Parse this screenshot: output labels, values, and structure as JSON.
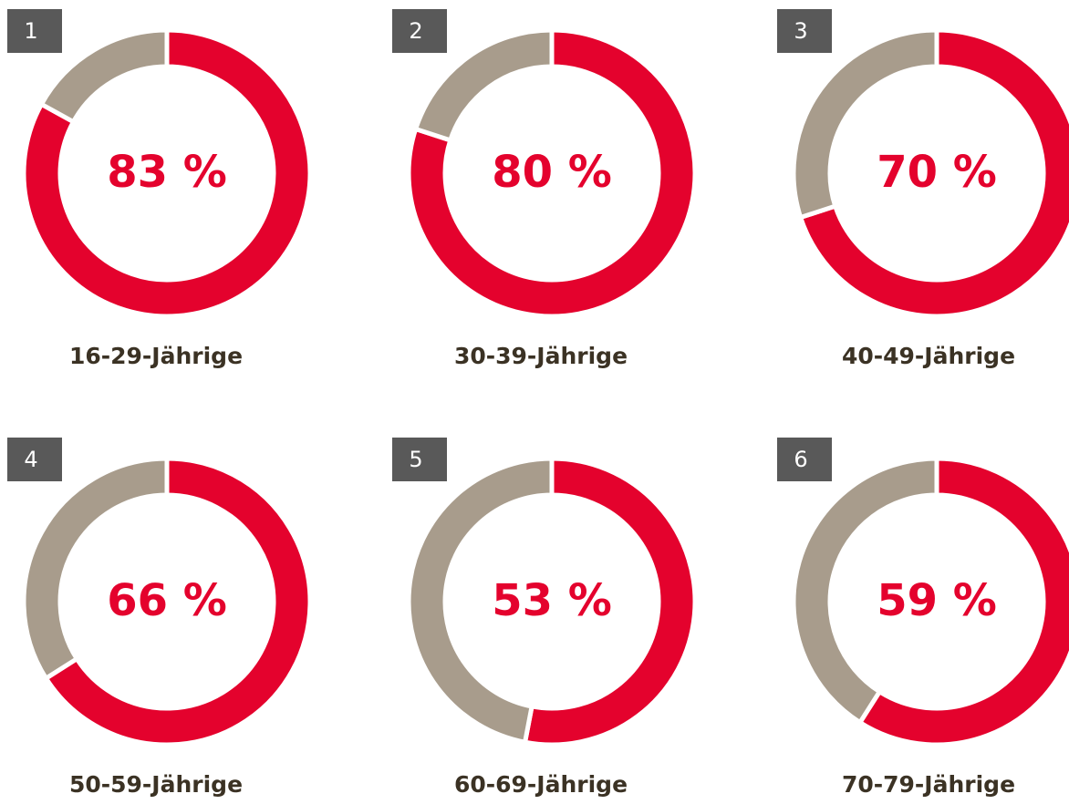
{
  "chart_data": [
    {
      "type": "donut",
      "badge": "1",
      "title": "16-29-Jährige",
      "values": [
        83,
        17
      ],
      "value_labels": [
        "83 %",
        null
      ],
      "colors": [
        "#e4022d",
        "#a89c8c"
      ]
    },
    {
      "type": "donut",
      "badge": "2",
      "title": "30-39-Jährige",
      "values": [
        80,
        20
      ],
      "value_labels": [
        "80 %",
        null
      ],
      "colors": [
        "#e4022d",
        "#a89c8c"
      ]
    },
    {
      "type": "donut",
      "badge": "3",
      "title": "40-49-Jährige",
      "values": [
        70,
        30
      ],
      "value_labels": [
        "70 %",
        null
      ],
      "colors": [
        "#e4022d",
        "#a89c8c"
      ]
    },
    {
      "type": "donut",
      "badge": "4",
      "title": "50-59-Jährige",
      "values": [
        66,
        34
      ],
      "value_labels": [
        "66 %",
        null
      ],
      "colors": [
        "#e4022d",
        "#a89c8c"
      ]
    },
    {
      "type": "donut",
      "badge": "5",
      "title": "60-69-Jährige",
      "values": [
        53,
        47
      ],
      "value_labels": [
        "53 %",
        null
      ],
      "colors": [
        "#e4022d",
        "#a89c8c"
      ]
    },
    {
      "type": "donut",
      "badge": "6",
      "title": "70-79-Jährige",
      "values": [
        59,
        41
      ],
      "value_labels": [
        "59 %",
        null
      ],
      "colors": [
        "#e4022d",
        "#a89c8c"
      ]
    }
  ]
}
